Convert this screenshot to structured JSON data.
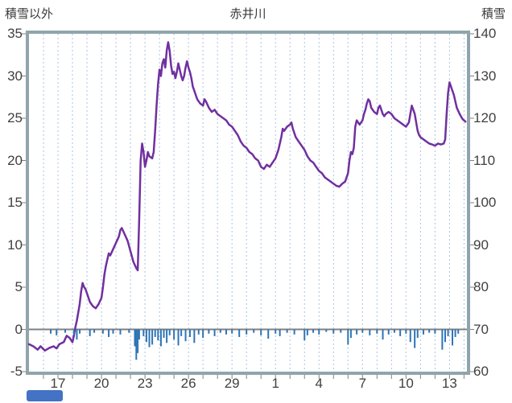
{
  "chart_data": {
    "type": "line",
    "title": "赤井川",
    "left_axis": {
      "label": "積雪以外",
      "min": -5,
      "max": 35,
      "ticks": [
        35,
        30,
        25,
        20,
        15,
        10,
        5,
        0,
        -5
      ]
    },
    "right_axis": {
      "label": "積雪",
      "min": 60,
      "max": 140,
      "ticks": [
        140,
        130,
        120,
        110,
        100,
        90,
        80,
        70,
        60
      ]
    },
    "x_axis": {
      "min": 0,
      "max": 30.2,
      "gridline_interval": 1,
      "tick_labels": [
        "17",
        "20",
        "23",
        "26",
        "29",
        "1",
        "4",
        "7",
        "10",
        "13"
      ],
      "tick_positions": [
        2,
        5,
        8,
        11,
        14,
        17,
        20,
        23,
        26,
        29
      ]
    },
    "zero_line_left_value": 0,
    "style": {
      "line_color": "#7030A0",
      "bar_color": "#2E75B6",
      "grid_color": "#A9C3DE",
      "zero_line_color": "#808080",
      "frame_color": "#90A4AB",
      "tick_color": "#808080",
      "scrollbar_color": "#4472C4",
      "text_color": "#404040"
    },
    "series": [
      {
        "name": "積雪",
        "type": "line",
        "axis": "right",
        "points": [
          [
            0,
            66.5
          ],
          [
            0.3,
            66
          ],
          [
            0.6,
            65.2
          ],
          [
            0.8,
            66
          ],
          [
            1.1,
            65
          ],
          [
            1.4,
            65.6
          ],
          [
            1.7,
            66
          ],
          [
            1.9,
            65.5
          ],
          [
            2.1,
            66.5
          ],
          [
            2.4,
            67
          ],
          [
            2.6,
            68.5
          ],
          [
            2.8,
            68
          ],
          [
            3.0,
            67
          ],
          [
            3.1,
            68.5
          ],
          [
            3.2,
            70.5
          ],
          [
            3.3,
            72
          ],
          [
            3.4,
            74
          ],
          [
            3.5,
            76
          ],
          [
            3.6,
            79
          ],
          [
            3.7,
            81
          ],
          [
            3.8,
            80
          ],
          [
            3.9,
            79.5
          ],
          [
            4.0,
            78.5
          ],
          [
            4.1,
            77.5
          ],
          [
            4.2,
            76.5
          ],
          [
            4.3,
            76
          ],
          [
            4.4,
            75.5
          ],
          [
            4.6,
            75
          ],
          [
            4.8,
            76
          ],
          [
            5.0,
            77.5
          ],
          [
            5.1,
            80
          ],
          [
            5.2,
            83
          ],
          [
            5.3,
            85
          ],
          [
            5.4,
            86.5
          ],
          [
            5.5,
            88
          ],
          [
            5.6,
            87.5
          ],
          [
            5.8,
            89
          ],
          [
            6.0,
            90.5
          ],
          [
            6.2,
            92
          ],
          [
            6.3,
            93.5
          ],
          [
            6.4,
            94
          ],
          [
            6.6,
            92.5
          ],
          [
            6.8,
            91
          ],
          [
            7.0,
            88.5
          ],
          [
            7.2,
            86
          ],
          [
            7.4,
            84.5
          ],
          [
            7.5,
            84
          ],
          [
            7.6,
            96
          ],
          [
            7.7,
            110
          ],
          [
            7.8,
            114
          ],
          [
            7.9,
            112
          ],
          [
            8.0,
            108.5
          ],
          [
            8.1,
            110
          ],
          [
            8.2,
            112
          ],
          [
            8.3,
            111
          ],
          [
            8.5,
            110.5
          ],
          [
            8.6,
            112
          ],
          [
            8.7,
            117
          ],
          [
            8.8,
            123
          ],
          [
            8.9,
            128
          ],
          [
            9.0,
            131.5
          ],
          [
            9.1,
            130
          ],
          [
            9.2,
            133
          ],
          [
            9.3,
            134
          ],
          [
            9.4,
            132
          ],
          [
            9.5,
            136
          ],
          [
            9.6,
            138
          ],
          [
            9.7,
            136
          ],
          [
            9.8,
            132.5
          ],
          [
            9.9,
            130.5
          ],
          [
            10.0,
            131
          ],
          [
            10.1,
            129.5
          ],
          [
            10.2,
            131
          ],
          [
            10.3,
            133
          ],
          [
            10.4,
            131.5
          ],
          [
            10.5,
            130
          ],
          [
            10.6,
            129
          ],
          [
            10.7,
            130
          ],
          [
            10.8,
            132
          ],
          [
            10.9,
            133.5
          ],
          [
            11.0,
            132
          ],
          [
            11.1,
            131
          ],
          [
            11.2,
            129.5
          ],
          [
            11.3,
            127.5
          ],
          [
            11.4,
            126.5
          ],
          [
            11.6,
            124.5
          ],
          [
            11.8,
            123.5
          ],
          [
            12.0,
            123
          ],
          [
            12.1,
            124.5
          ],
          [
            12.2,
            124
          ],
          [
            12.4,
            122.5
          ],
          [
            12.6,
            121.5
          ],
          [
            12.8,
            122
          ],
          [
            13.0,
            121
          ],
          [
            13.2,
            120.5
          ],
          [
            13.4,
            120
          ],
          [
            13.6,
            119.5
          ],
          [
            13.8,
            118.5
          ],
          [
            14.0,
            118
          ],
          [
            14.2,
            117
          ],
          [
            14.4,
            116
          ],
          [
            14.6,
            114.5
          ],
          [
            14.8,
            113.5
          ],
          [
            15.0,
            113
          ],
          [
            15.2,
            112
          ],
          [
            15.4,
            111.5
          ],
          [
            15.6,
            110.5
          ],
          [
            15.8,
            110
          ],
          [
            16.0,
            108.5
          ],
          [
            16.2,
            108
          ],
          [
            16.4,
            109
          ],
          [
            16.6,
            108.5
          ],
          [
            16.8,
            109.5
          ],
          [
            17.0,
            110.5
          ],
          [
            17.2,
            112.5
          ],
          [
            17.4,
            115.5
          ],
          [
            17.5,
            117.5
          ],
          [
            17.6,
            117
          ],
          [
            17.8,
            118
          ],
          [
            18.0,
            118.5
          ],
          [
            18.1,
            119
          ],
          [
            18.2,
            117.5
          ],
          [
            18.4,
            115.5
          ],
          [
            18.6,
            114.5
          ],
          [
            18.8,
            113.5
          ],
          [
            19.0,
            112.5
          ],
          [
            19.2,
            111
          ],
          [
            19.4,
            110
          ],
          [
            19.6,
            109.5
          ],
          [
            19.8,
            108.5
          ],
          [
            20.0,
            107.5
          ],
          [
            20.2,
            107
          ],
          [
            20.4,
            106
          ],
          [
            20.6,
            105.5
          ],
          [
            20.8,
            105
          ],
          [
            21.0,
            104.5
          ],
          [
            21.2,
            104
          ],
          [
            21.4,
            103.8
          ],
          [
            21.6,
            104.5
          ],
          [
            21.8,
            105
          ],
          [
            22.0,
            107
          ],
          [
            22.1,
            110
          ],
          [
            22.2,
            112
          ],
          [
            22.3,
            111.5
          ],
          [
            22.4,
            113
          ],
          [
            22.5,
            118
          ],
          [
            22.6,
            119.5
          ],
          [
            22.7,
            119
          ],
          [
            22.8,
            118.5
          ],
          [
            23.0,
            119.5
          ],
          [
            23.1,
            121
          ],
          [
            23.2,
            122
          ],
          [
            23.3,
            123.5
          ],
          [
            23.4,
            124.5
          ],
          [
            23.5,
            124
          ],
          [
            23.6,
            122.5
          ],
          [
            23.7,
            122
          ],
          [
            23.8,
            121.5
          ],
          [
            24.0,
            121
          ],
          [
            24.1,
            122.5
          ],
          [
            24.2,
            123
          ],
          [
            24.3,
            122
          ],
          [
            24.4,
            121
          ],
          [
            24.5,
            120.5
          ],
          [
            24.6,
            121
          ],
          [
            24.8,
            121.5
          ],
          [
            25.0,
            121
          ],
          [
            25.2,
            120
          ],
          [
            25.4,
            119.5
          ],
          [
            25.6,
            119
          ],
          [
            25.8,
            118.5
          ],
          [
            26.0,
            118
          ],
          [
            26.1,
            118.5
          ],
          [
            26.2,
            119
          ],
          [
            26.3,
            121
          ],
          [
            26.4,
            123
          ],
          [
            26.5,
            122
          ],
          [
            26.6,
            121
          ],
          [
            26.7,
            119
          ],
          [
            26.8,
            117
          ],
          [
            26.9,
            116
          ],
          [
            27.0,
            115.5
          ],
          [
            27.2,
            115
          ],
          [
            27.4,
            114.5
          ],
          [
            27.6,
            114
          ],
          [
            27.8,
            113.8
          ],
          [
            28.0,
            113.5
          ],
          [
            28.2,
            114
          ],
          [
            28.4,
            113.8
          ],
          [
            28.6,
            114
          ],
          [
            28.7,
            115
          ],
          [
            28.8,
            121
          ],
          [
            28.9,
            126
          ],
          [
            29.0,
            128.5
          ],
          [
            29.1,
            127.5
          ],
          [
            29.2,
            126.5
          ],
          [
            29.3,
            125.5
          ],
          [
            29.4,
            124
          ],
          [
            29.5,
            122.5
          ],
          [
            29.7,
            121
          ],
          [
            29.9,
            119.8
          ],
          [
            30.1,
            119.2
          ]
        ]
      },
      {
        "name": "積雪以外",
        "type": "bar",
        "axis": "left",
        "points": [
          [
            1.5,
            -0.5
          ],
          [
            1.9,
            -0.7
          ],
          [
            2.5,
            -0.4
          ],
          [
            3.1,
            -0.6
          ],
          [
            3.3,
            -1.2
          ],
          [
            3.5,
            -0.5
          ],
          [
            4.2,
            -0.8
          ],
          [
            4.5,
            -0.4
          ],
          [
            5.1,
            -0.5
          ],
          [
            5.5,
            -0.9
          ],
          [
            5.8,
            -0.5
          ],
          [
            6.3,
            -0.6
          ],
          [
            6.9,
            -0.4
          ],
          [
            7.3,
            -2.0
          ],
          [
            7.4,
            -3.6
          ],
          [
            7.5,
            -2.8
          ],
          [
            7.6,
            -1.2
          ],
          [
            7.9,
            -0.8
          ],
          [
            8.1,
            -1.5
          ],
          [
            8.3,
            -2.1
          ],
          [
            8.5,
            -1.8
          ],
          [
            8.7,
            -0.9
          ],
          [
            8.9,
            -1.3
          ],
          [
            9.1,
            -2.0
          ],
          [
            9.3,
            -1.0
          ],
          [
            9.5,
            -1.6
          ],
          [
            9.7,
            -0.7
          ],
          [
            10.0,
            -1.2
          ],
          [
            10.3,
            -1.9
          ],
          [
            10.5,
            -0.8
          ],
          [
            10.8,
            -1.4
          ],
          [
            11.1,
            -0.9
          ],
          [
            11.4,
            -1.6
          ],
          [
            11.7,
            -0.6
          ],
          [
            12.0,
            -1.0
          ],
          [
            12.4,
            -0.5
          ],
          [
            12.8,
            -0.8
          ],
          [
            13.2,
            -0.4
          ],
          [
            13.6,
            -0.6
          ],
          [
            14.0,
            -0.5
          ],
          [
            14.5,
            -0.9
          ],
          [
            15.0,
            -0.6
          ],
          [
            15.5,
            -0.4
          ],
          [
            16.0,
            -0.7
          ],
          [
            16.5,
            -1.1
          ],
          [
            17.0,
            -0.5
          ],
          [
            17.3,
            -0.8
          ],
          [
            17.8,
            -0.4
          ],
          [
            18.3,
            -0.6
          ],
          [
            19.0,
            -1.3
          ],
          [
            19.2,
            -0.7
          ],
          [
            19.6,
            -0.4
          ],
          [
            20.0,
            -0.6
          ],
          [
            20.5,
            -0.3
          ],
          [
            21.0,
            -0.5
          ],
          [
            21.5,
            -0.4
          ],
          [
            22.0,
            -1.8
          ],
          [
            22.2,
            -1.0
          ],
          [
            22.6,
            -0.6
          ],
          [
            23.0,
            -0.4
          ],
          [
            23.5,
            -0.7
          ],
          [
            24.0,
            -0.5
          ],
          [
            24.4,
            -1.2
          ],
          [
            24.8,
            -0.6
          ],
          [
            25.2,
            -0.4
          ],
          [
            25.6,
            -0.8
          ],
          [
            26.0,
            -0.5
          ],
          [
            26.3,
            -1.5
          ],
          [
            26.6,
            -2.2
          ],
          [
            26.8,
            -1.0
          ],
          [
            27.2,
            -0.6
          ],
          [
            27.6,
            -0.4
          ],
          [
            28.0,
            -0.5
          ],
          [
            28.5,
            -2.4
          ],
          [
            28.7,
            -1.5
          ],
          [
            28.9,
            -0.8
          ],
          [
            29.2,
            -1.9
          ],
          [
            29.4,
            -0.9
          ],
          [
            29.6,
            -0.5
          ]
        ]
      }
    ]
  }
}
